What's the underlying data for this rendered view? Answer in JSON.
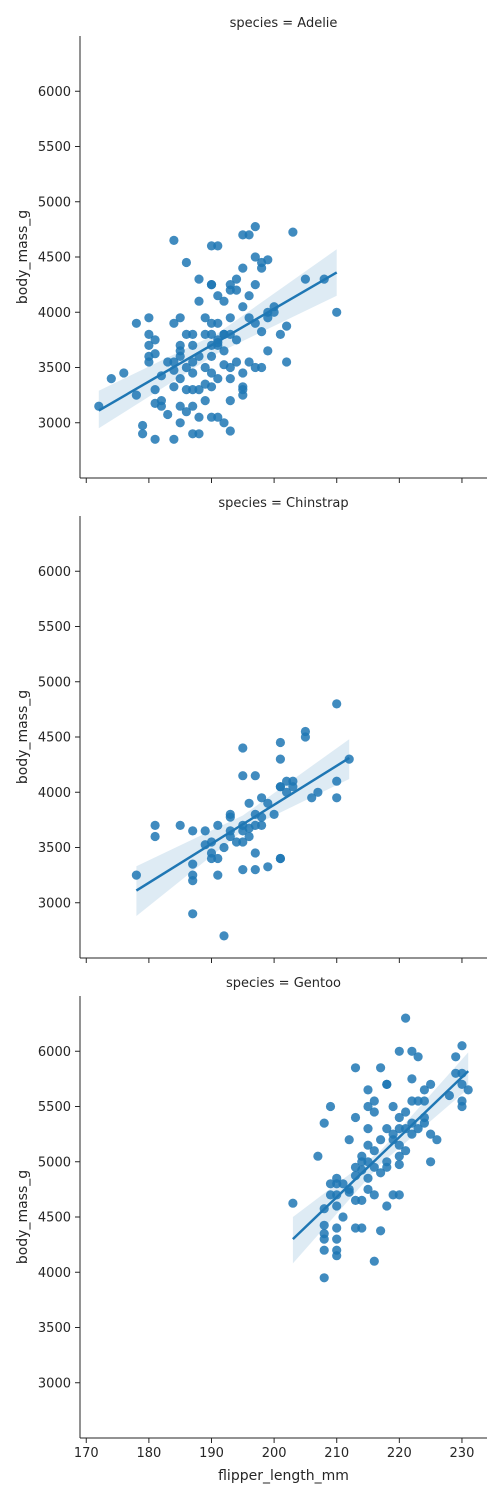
{
  "chart_data": {
    "type": "scatter",
    "layout": "facet-grid-rows",
    "xlabel": "flipper_length_mm",
    "ylabel": "body_mass_g",
    "xlim": [
      169,
      234
    ],
    "ylim": [
      2500,
      6500
    ],
    "xticks": [
      170,
      180,
      190,
      200,
      210,
      220,
      230
    ],
    "yticks": [
      3000,
      3500,
      4000,
      4500,
      5000,
      5500,
      6000
    ],
    "grid": false,
    "colors": {
      "points": "#1f77b4",
      "fit_line": "#1f77b4",
      "ci_band": "#1f77b4"
    },
    "facets": [
      {
        "title": "species = Adelie",
        "regression": {
          "x": [
            172,
            210
          ],
          "y": [
            3110,
            4360
          ]
        },
        "ci_band": {
          "x": [
            172,
            191,
            210
          ],
          "upper": [
            3290,
            3810,
            4570
          ],
          "lower": [
            2950,
            3630,
            4150
          ]
        },
        "points": [
          [
            172,
            3150
          ],
          [
            174,
            3400
          ],
          [
            176,
            3450
          ],
          [
            178,
            3900
          ],
          [
            178,
            3250
          ],
          [
            179,
            2900
          ],
          [
            179,
            2975
          ],
          [
            180,
            3550
          ],
          [
            180,
            3600
          ],
          [
            180,
            3700
          ],
          [
            180,
            3800
          ],
          [
            180,
            3950
          ],
          [
            181,
            3750
          ],
          [
            181,
            3625
          ],
          [
            181,
            2850
          ],
          [
            181,
            3300
          ],
          [
            181,
            3175
          ],
          [
            182,
            3200
          ],
          [
            182,
            3425
          ],
          [
            182,
            3150
          ],
          [
            183,
            3075
          ],
          [
            183,
            3550
          ],
          [
            184,
            4650
          ],
          [
            184,
            3550
          ],
          [
            184,
            3900
          ],
          [
            184,
            3325
          ],
          [
            184,
            3475
          ],
          [
            184,
            2850
          ],
          [
            185,
            3950
          ],
          [
            185,
            3700
          ],
          [
            185,
            3650
          ],
          [
            185,
            3600
          ],
          [
            185,
            3400
          ],
          [
            185,
            3150
          ],
          [
            185,
            3000
          ],
          [
            186,
            4450
          ],
          [
            186,
            3500
          ],
          [
            186,
            3800
          ],
          [
            186,
            3300
          ],
          [
            186,
            3100
          ],
          [
            187,
            3800
          ],
          [
            187,
            3550
          ],
          [
            187,
            3450
          ],
          [
            187,
            3700
          ],
          [
            187,
            3300
          ],
          [
            187,
            3150
          ],
          [
            187,
            2900
          ],
          [
            188,
            3600
          ],
          [
            188,
            4300
          ],
          [
            188,
            4100
          ],
          [
            188,
            3300
          ],
          [
            188,
            3050
          ],
          [
            188,
            2900
          ],
          [
            189,
            3950
          ],
          [
            189,
            3800
          ],
          [
            189,
            3500
          ],
          [
            189,
            3200
          ],
          [
            189,
            3350
          ],
          [
            190,
            4600
          ],
          [
            190,
            4250
          ],
          [
            190,
            4250
          ],
          [
            190,
            3900
          ],
          [
            190,
            3800
          ],
          [
            190,
            3700
          ],
          [
            190,
            3600
          ],
          [
            190,
            3450
          ],
          [
            190,
            3325
          ],
          [
            190,
            3050
          ],
          [
            191,
            4600
          ],
          [
            191,
            4150
          ],
          [
            191,
            3900
          ],
          [
            191,
            3750
          ],
          [
            191,
            3700
          ],
          [
            191,
            3725
          ],
          [
            191,
            3400
          ],
          [
            191,
            3050
          ],
          [
            192,
            4100
          ],
          [
            192,
            3800
          ],
          [
            192,
            3800
          ],
          [
            192,
            3650
          ],
          [
            192,
            3525
          ],
          [
            192,
            3000
          ],
          [
            193,
            4250
          ],
          [
            193,
            4200
          ],
          [
            193,
            3950
          ],
          [
            193,
            3800
          ],
          [
            193,
            3500
          ],
          [
            193,
            3400
          ],
          [
            193,
            3200
          ],
          [
            193,
            2925
          ],
          [
            194,
            4300
          ],
          [
            194,
            4200
          ],
          [
            194,
            3750
          ],
          [
            194,
            3550
          ],
          [
            195,
            4700
          ],
          [
            195,
            4400
          ],
          [
            195,
            4050
          ],
          [
            195,
            3450
          ],
          [
            195,
            3325
          ],
          [
            195,
            3300
          ],
          [
            195,
            3250
          ],
          [
            196,
            4700
          ],
          [
            196,
            4150
          ],
          [
            196,
            3550
          ],
          [
            196,
            3950
          ],
          [
            197,
            4775
          ],
          [
            197,
            4500
          ],
          [
            197,
            4250
          ],
          [
            197,
            3500
          ],
          [
            197,
            3900
          ],
          [
            198,
            4450
          ],
          [
            198,
            4400
          ],
          [
            198,
            3500
          ],
          [
            198,
            3825
          ],
          [
            199,
            4475
          ],
          [
            199,
            4000
          ],
          [
            199,
            3950
          ],
          [
            199,
            3650
          ],
          [
            200,
            4050
          ],
          [
            200,
            4000
          ],
          [
            201,
            3800
          ],
          [
            202,
            3875
          ],
          [
            202,
            3550
          ],
          [
            203,
            4725
          ],
          [
            205,
            4300
          ],
          [
            208,
            4300
          ],
          [
            210,
            4000
          ]
        ]
      },
      {
        "title": "species = Chinstrap",
        "regression": {
          "x": [
            178,
            212
          ],
          "y": [
            3110,
            4310
          ]
        },
        "ci_band": {
          "x": [
            178,
            195,
            212
          ],
          "upper": [
            3330,
            3790,
            4480
          ],
          "lower": [
            2880,
            3650,
            4120
          ]
        },
        "points": [
          [
            178,
            3250
          ],
          [
            181,
            3700
          ],
          [
            181,
            3600
          ],
          [
            185,
            3700
          ],
          [
            187,
            3650
          ],
          [
            187,
            3350
          ],
          [
            187,
            3250
          ],
          [
            187,
            3200
          ],
          [
            187,
            2900
          ],
          [
            189,
            3525
          ],
          [
            189,
            3650
          ],
          [
            190,
            3450
          ],
          [
            190,
            3400
          ],
          [
            190,
            3550
          ],
          [
            191,
            3700
          ],
          [
            191,
            3400
          ],
          [
            191,
            3250
          ],
          [
            192,
            3500
          ],
          [
            192,
            2700
          ],
          [
            193,
            3800
          ],
          [
            193,
            3775
          ],
          [
            193,
            3600
          ],
          [
            193,
            3650
          ],
          [
            194,
            3550
          ],
          [
            195,
            4400
          ],
          [
            195,
            4150
          ],
          [
            195,
            3700
          ],
          [
            195,
            3650
          ],
          [
            195,
            3550
          ],
          [
            195,
            3300
          ],
          [
            196,
            3600
          ],
          [
            196,
            3900
          ],
          [
            196,
            3675
          ],
          [
            197,
            4150
          ],
          [
            197,
            3700
          ],
          [
            197,
            3800
          ],
          [
            197,
            3450
          ],
          [
            197,
            3300
          ],
          [
            198,
            3950
          ],
          [
            198,
            3775
          ],
          [
            198,
            3700
          ],
          [
            199,
            3325
          ],
          [
            199,
            3900
          ],
          [
            200,
            3800
          ],
          [
            201,
            4050
          ],
          [
            201,
            4050
          ],
          [
            201,
            4300
          ],
          [
            201,
            4450
          ],
          [
            201,
            3400
          ],
          [
            201,
            3400
          ],
          [
            202,
            4000
          ],
          [
            202,
            4100
          ],
          [
            203,
            4100
          ],
          [
            203,
            4050
          ],
          [
            205,
            4550
          ],
          [
            205,
            4500
          ],
          [
            206,
            3950
          ],
          [
            207,
            4000
          ],
          [
            210,
            4800
          ],
          [
            210,
            4100
          ],
          [
            210,
            3950
          ],
          [
            212,
            4300
          ]
        ]
      },
      {
        "title": "species = Gentoo",
        "regression": {
          "x": [
            203,
            231
          ],
          "y": [
            4300,
            5820
          ]
        },
        "ci_band": {
          "x": [
            203,
            217,
            231
          ],
          "upper": [
            4500,
            5100,
            5990
          ],
          "lower": [
            4080,
            4980,
            5660
          ]
        },
        "points": [
          [
            203,
            4625
          ],
          [
            207,
            5050
          ],
          [
            208,
            5350
          ],
          [
            208,
            4575
          ],
          [
            208,
            4425
          ],
          [
            208,
            4350
          ],
          [
            208,
            4300
          ],
          [
            208,
            4200
          ],
          [
            208,
            3950
          ],
          [
            209,
            5500
          ],
          [
            209,
            4800
          ],
          [
            209,
            4700
          ],
          [
            210,
            4850
          ],
          [
            210,
            4800
          ],
          [
            210,
            4700
          ],
          [
            210,
            4600
          ],
          [
            210,
            4400
          ],
          [
            210,
            4300
          ],
          [
            210,
            4200
          ],
          [
            210,
            4150
          ],
          [
            211,
            4800
          ],
          [
            211,
            4500
          ],
          [
            212,
            4750
          ],
          [
            212,
            4725
          ],
          [
            212,
            5200
          ],
          [
            213,
            5850
          ],
          [
            213,
            5400
          ],
          [
            213,
            4950
          ],
          [
            213,
            4875
          ],
          [
            213,
            4650
          ],
          [
            213,
            4400
          ],
          [
            214,
            5050
          ],
          [
            214,
            5000
          ],
          [
            214,
            4925
          ],
          [
            214,
            4650
          ],
          [
            214,
            4400
          ],
          [
            215,
            5650
          ],
          [
            215,
            5500
          ],
          [
            215,
            5300
          ],
          [
            215,
            5150
          ],
          [
            215,
            5000
          ],
          [
            215,
            4850
          ],
          [
            215,
            4750
          ],
          [
            216,
            5550
          ],
          [
            216,
            5450
          ],
          [
            216,
            5100
          ],
          [
            216,
            4950
          ],
          [
            216,
            4700
          ],
          [
            216,
            4100
          ],
          [
            217,
            5850
          ],
          [
            217,
            5200
          ],
          [
            217,
            4900
          ],
          [
            217,
            4375
          ],
          [
            218,
            5700
          ],
          [
            218,
            5700
          ],
          [
            218,
            5300
          ],
          [
            218,
            5000
          ],
          [
            218,
            4600
          ],
          [
            218,
            4950
          ],
          [
            219,
            5500
          ],
          [
            219,
            5250
          ],
          [
            219,
            5200
          ],
          [
            219,
            4700
          ],
          [
            220,
            6000
          ],
          [
            220,
            5400
          ],
          [
            220,
            5300
          ],
          [
            220,
            5150
          ],
          [
            220,
            5050
          ],
          [
            220,
            4975
          ],
          [
            220,
            4700
          ],
          [
            221,
            6300
          ],
          [
            221,
            5450
          ],
          [
            221,
            5300
          ],
          [
            221,
            5100
          ],
          [
            222,
            6000
          ],
          [
            222,
            5750
          ],
          [
            222,
            5550
          ],
          [
            222,
            5350
          ],
          [
            222,
            5250
          ],
          [
            223,
            5950
          ],
          [
            223,
            5550
          ],
          [
            223,
            5300
          ],
          [
            224,
            5650
          ],
          [
            224,
            5550
          ],
          [
            224,
            5400
          ],
          [
            224,
            5350
          ],
          [
            225,
            5700
          ],
          [
            225,
            5250
          ],
          [
            225,
            5000
          ],
          [
            226,
            5200
          ],
          [
            228,
            5600
          ],
          [
            229,
            5950
          ],
          [
            229,
            5800
          ],
          [
            230,
            6050
          ],
          [
            230,
            5800
          ],
          [
            230,
            5700
          ],
          [
            230,
            5550
          ],
          [
            230,
            5500
          ],
          [
            231,
            5650
          ]
        ]
      }
    ]
  }
}
